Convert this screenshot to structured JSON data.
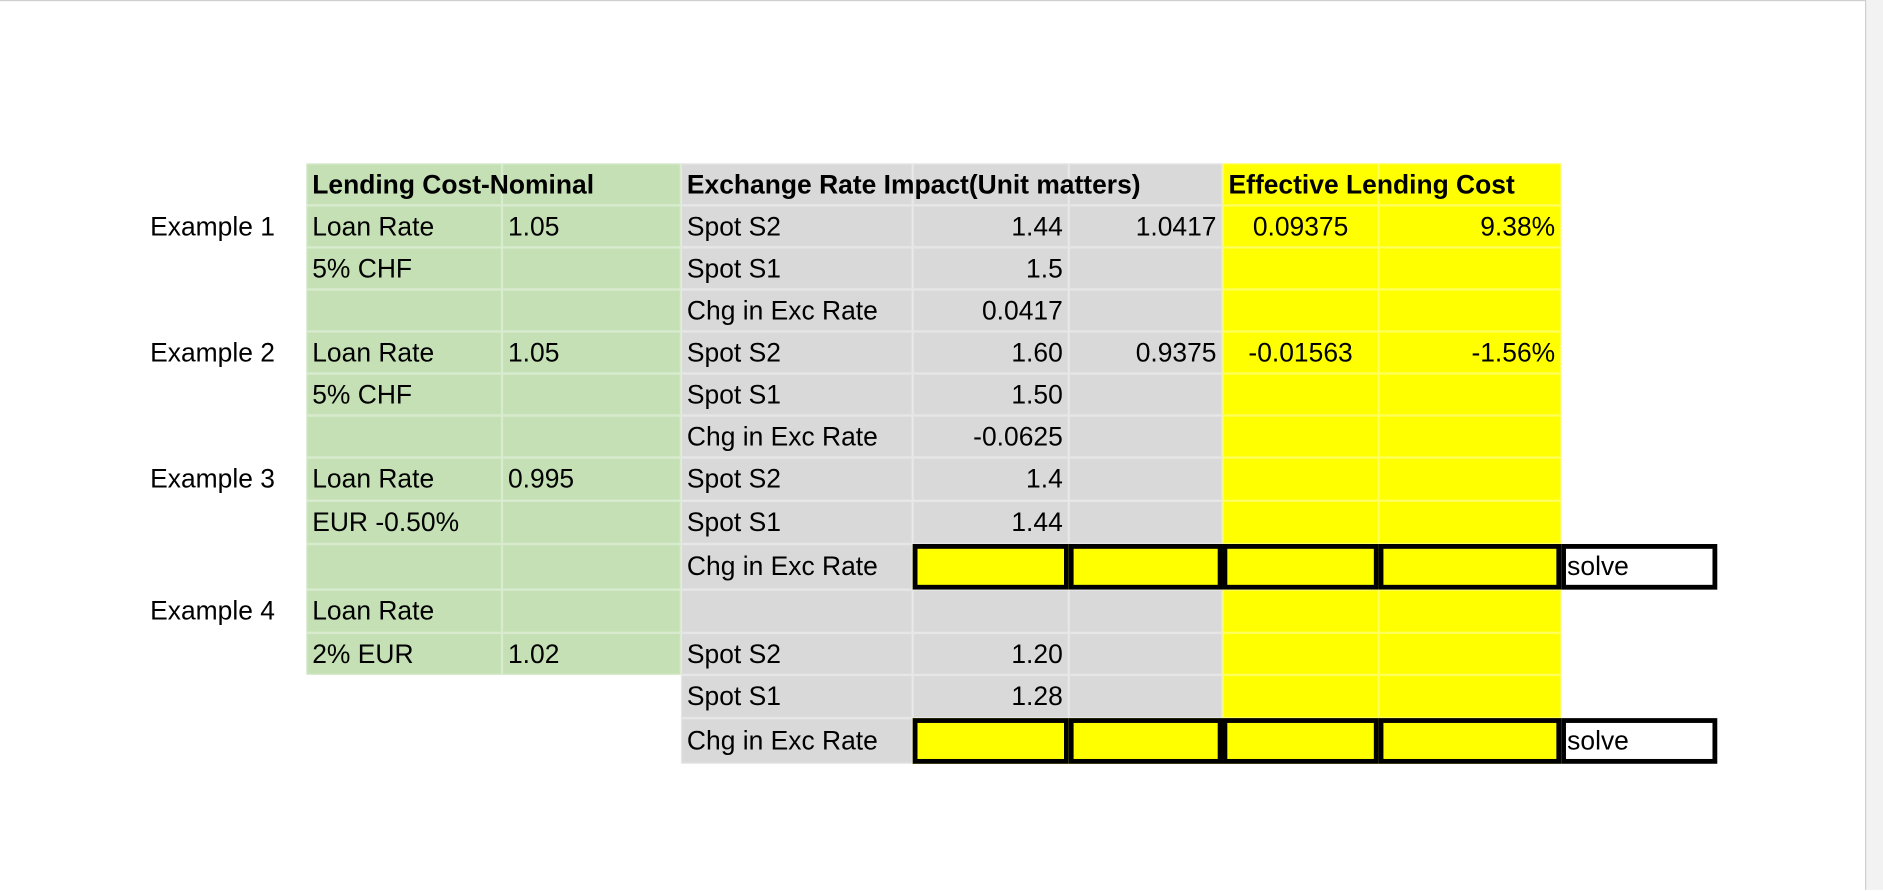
{
  "header": [
    "Lending Cost-Nominal",
    "Exchange Rate Impact(Unit matters)",
    "Effective Lending Cost"
  ],
  "rows": [
    [
      "Example 1",
      "Loan Rate",
      "1.05",
      "Spot S2",
      "1.44",
      "1.0417",
      "0.09375",
      "9.38%",
      null
    ],
    [
      null,
      "5% CHF",
      null,
      "Spot S1",
      "1.5",
      null,
      null,
      null,
      null
    ],
    [
      null,
      null,
      null,
      "Chg in Exc Rate",
      "0.0417",
      null,
      null,
      null,
      null
    ],
    [
      "Example 2",
      "Loan Rate",
      "1.05",
      "Spot S2",
      "1.60",
      "0.9375",
      "-0.01563",
      "-1.56%",
      null
    ],
    [
      null,
      "5% CHF",
      null,
      "Spot S1",
      "1.50",
      null,
      null,
      null,
      null
    ],
    [
      null,
      null,
      null,
      "Chg in Exc Rate",
      "-0.0625",
      null,
      null,
      null,
      null
    ],
    [
      "Example 3",
      "Loan Rate",
      "0.995",
      "Spot S2",
      "1.4",
      null,
      null,
      null,
      null
    ],
    [
      null,
      "EUR -0.50%",
      null,
      "Spot S1",
      "1.44",
      null,
      null,
      null,
      null
    ],
    [
      null,
      null,
      null,
      "Chg in Exc Rate",
      null,
      null,
      null,
      null,
      "solve"
    ],
    [
      "Example 4",
      "Loan Rate",
      null,
      null,
      null,
      null,
      null,
      null,
      null
    ],
    [
      null,
      "2% EUR",
      "1.02",
      "Spot S2",
      "1.20",
      null,
      null,
      null,
      null
    ],
    [
      null,
      null,
      null,
      "Spot S1",
      "1.28",
      null,
      null,
      null,
      null
    ],
    [
      null,
      null,
      null,
      "Chg in Exc Rate",
      null,
      null,
      null,
      null,
      "solve"
    ]
  ]
}
